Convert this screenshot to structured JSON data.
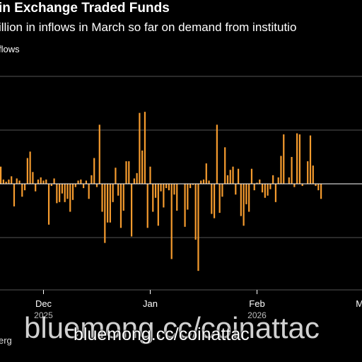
{
  "header": {
    "title": "in Exchange Traded Funds",
    "subtitle": "illion in inflows in March so far on demand from institutio",
    "legend_label": "flows"
  },
  "colors": {
    "background": "#000000",
    "bar": "#f59b2e",
    "grid": "#555555",
    "zero_line": "#ffffff",
    "text": "#ffffff"
  },
  "chart_data": {
    "type": "bar",
    "title": "in Exchange Traded Funds",
    "subtitle": "illion in inflows in March so far on demand from institutio",
    "series": [
      {
        "name": "flows",
        "values": [
          1.6,
          0.4,
          0.2,
          0.4,
          0.7,
          -2.1,
          0.5,
          0.3,
          -1.2,
          -0.6,
          2.4,
          3.0,
          1.1,
          -0.7,
          0.4,
          0.6,
          0.3,
          0.4,
          -3.8,
          -0.2,
          0.5,
          -1.8,
          -1.7,
          -0.9,
          -1.7,
          -1.4,
          -2.6,
          -1.5,
          -0.3,
          0.3,
          0.4,
          -0.4,
          0.3,
          -1.4,
          0.8,
          2.4,
          -0.3,
          5.5,
          -2.6,
          -5.5,
          -3.6,
          -3.6,
          -1.7,
          1.5,
          -1.1,
          -4.1,
          -2.5,
          2.1,
          2.1,
          -4.9,
          0.5,
          1.0,
          6.6,
          3.1,
          6.7,
          -4.1,
          1.6,
          -2.6,
          -1.3,
          -3.9,
          -0.7,
          -2.2,
          -0.4,
          -0.6,
          -7.0,
          -1.0,
          -2.5,
          0.0,
          0.0,
          -4.0,
          -2.4,
          -0.4,
          -0.1,
          -5.2,
          -8.1,
          0.3,
          0.4,
          1.9,
          0.3,
          -2.8,
          -3.2,
          5.5,
          -2.7,
          -1.2,
          3.4,
          0.8,
          1.3,
          1.6,
          -1.0,
          1.4,
          -3.0,
          -3.9,
          -1.9,
          -2.6,
          1.4,
          -0.6,
          0.1,
          0.4,
          -0.8,
          -1.3,
          -1.1,
          -0.5,
          0.8,
          -1.7,
          0.6,
          2.6,
          4.6,
          0.0,
          0.6,
          2.5,
          -0.3,
          4.7,
          4.6,
          -0.2,
          0.0,
          2.1,
          4.5,
          1.7,
          -0.2,
          -0.6,
          -1.4
        ]
      }
    ],
    "x_tick_labels": [
      "Dec",
      "Jan",
      "Feb",
      "Mar"
    ],
    "x_tick_index": [
      16,
      56,
      96,
      136
    ],
    "year_labels": [
      "2025",
      "2026"
    ],
    "year_tick_index": [
      16,
      96
    ],
    "ylim": [
      -10,
      10
    ],
    "gridlines": [
      -5,
      0,
      5,
      10
    ],
    "grid": true,
    "legend": "top-left"
  },
  "source": {
    "text": "erg"
  },
  "watermark": {
    "large": "bluemong.cc/coinattac",
    "small": "bluemong.cc/coinattac"
  }
}
